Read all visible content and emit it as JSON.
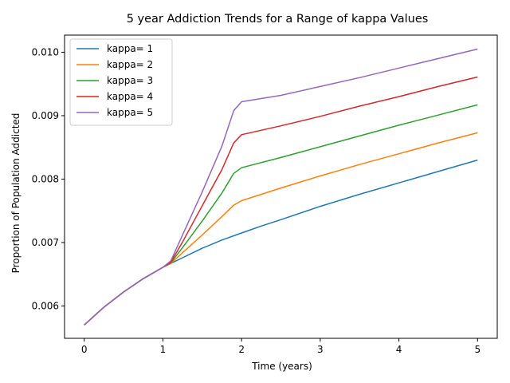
{
  "chart_data": {
    "type": "line",
    "title": "5 year Addiction Trends for a Range of kappa Values",
    "xlabel": "Time (years)",
    "ylabel": "Proportion of Population Addicted",
    "xlim": [
      -0.25,
      5.25
    ],
    "ylim": [
      0.00549,
      0.01027
    ],
    "xticks": [
      0,
      1,
      2,
      3,
      4,
      5
    ],
    "xtick_labels": [
      "0",
      "1",
      "2",
      "3",
      "4",
      "5"
    ],
    "yticks": [
      0.006,
      0.007,
      0.008,
      0.009,
      0.01
    ],
    "ytick_labels": [
      "0.006",
      "0.007",
      "0.008",
      "0.009",
      "0.010"
    ],
    "grid": false,
    "legend_position": "top-left",
    "series": [
      {
        "name": "kappa= 1",
        "color": "#1f77b4",
        "points": [
          [
            0,
            0.0057
          ],
          [
            0.25,
            0.00598
          ],
          [
            0.5,
            0.00622
          ],
          [
            0.75,
            0.00643
          ],
          [
            1.0,
            0.00661
          ],
          [
            1.1,
            0.00667
          ],
          [
            1.25,
            0.00676
          ],
          [
            1.5,
            0.00691
          ],
          [
            1.75,
            0.00704
          ],
          [
            2.0,
            0.00715
          ],
          [
            2.25,
            0.00726
          ],
          [
            2.5,
            0.00736
          ],
          [
            3.0,
            0.00757
          ],
          [
            3.5,
            0.00776
          ],
          [
            4.0,
            0.00794
          ],
          [
            4.5,
            0.00812
          ],
          [
            5.0,
            0.0083
          ]
        ]
      },
      {
        "name": "kappa= 2",
        "color": "#ff7f0e",
        "points": [
          [
            0,
            0.0057
          ],
          [
            0.25,
            0.00598
          ],
          [
            0.5,
            0.00622
          ],
          [
            0.75,
            0.00643
          ],
          [
            1.0,
            0.00661
          ],
          [
            1.1,
            0.00667
          ],
          [
            1.25,
            0.00684
          ],
          [
            1.5,
            0.00712
          ],
          [
            1.75,
            0.00741
          ],
          [
            1.9,
            0.00759
          ],
          [
            2.0,
            0.00766
          ],
          [
            2.5,
            0.00786
          ],
          [
            3.0,
            0.00805
          ],
          [
            3.5,
            0.00823
          ],
          [
            4.0,
            0.0084
          ],
          [
            4.5,
            0.00857
          ],
          [
            5.0,
            0.00873
          ]
        ]
      },
      {
        "name": "kappa= 3",
        "color": "#2ca02c",
        "points": [
          [
            0,
            0.0057
          ],
          [
            0.25,
            0.00598
          ],
          [
            0.5,
            0.00622
          ],
          [
            0.75,
            0.00643
          ],
          [
            1.0,
            0.00661
          ],
          [
            1.1,
            0.00668
          ],
          [
            1.25,
            0.00692
          ],
          [
            1.5,
            0.00734
          ],
          [
            1.75,
            0.00778
          ],
          [
            1.9,
            0.00809
          ],
          [
            2.0,
            0.00818
          ],
          [
            2.5,
            0.00834
          ],
          [
            3.0,
            0.00851
          ],
          [
            3.5,
            0.00868
          ],
          [
            4.0,
            0.00885
          ],
          [
            4.5,
            0.00901
          ],
          [
            5.0,
            0.00917
          ]
        ]
      },
      {
        "name": "kappa= 4",
        "color": "#d62728",
        "points": [
          [
            0,
            0.0057
          ],
          [
            0.25,
            0.00598
          ],
          [
            0.5,
            0.00622
          ],
          [
            0.75,
            0.00643
          ],
          [
            1.0,
            0.00661
          ],
          [
            1.1,
            0.00669
          ],
          [
            1.25,
            0.00701
          ],
          [
            1.5,
            0.00758
          ],
          [
            1.75,
            0.00815
          ],
          [
            1.9,
            0.00857
          ],
          [
            2.0,
            0.0087
          ],
          [
            2.5,
            0.00884
          ],
          [
            3.0,
            0.00899
          ],
          [
            3.5,
            0.00915
          ],
          [
            4.0,
            0.0093
          ],
          [
            4.5,
            0.00946
          ],
          [
            5.0,
            0.00961
          ]
        ]
      },
      {
        "name": "kappa= 5",
        "color": "#9467bd",
        "points": [
          [
            0,
            0.0057
          ],
          [
            0.25,
            0.00598
          ],
          [
            0.5,
            0.00622
          ],
          [
            0.75,
            0.00643
          ],
          [
            1.0,
            0.00661
          ],
          [
            1.1,
            0.00671
          ],
          [
            1.25,
            0.00712
          ],
          [
            1.5,
            0.0078
          ],
          [
            1.75,
            0.00852
          ],
          [
            1.9,
            0.00908
          ],
          [
            2.0,
            0.00922
          ],
          [
            2.5,
            0.00932
          ],
          [
            3.0,
            0.00946
          ],
          [
            3.5,
            0.0096
          ],
          [
            4.0,
            0.00975
          ],
          [
            4.5,
            0.0099
          ],
          [
            5.0,
            0.01005
          ]
        ]
      }
    ]
  }
}
